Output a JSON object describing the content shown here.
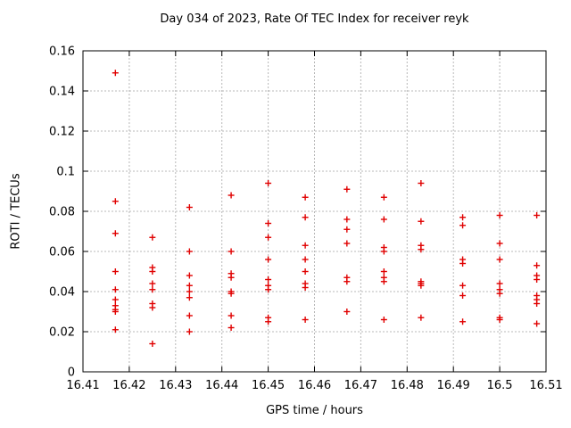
{
  "chart": {
    "title": "Day 034 of 2023, Rate Of TEC Index for receiver reyk",
    "xlabel": "GPS time / hours",
    "ylabel": "ROTI / TECUs"
  },
  "chart_data": {
    "type": "scatter",
    "title": "Day 034 of 2023, Rate Of TEC Index for receiver reyk",
    "xlabel": "GPS time / hours",
    "ylabel": "ROTI / TECUs",
    "xlim": [
      16.41,
      16.51
    ],
    "ylim": [
      0,
      0.16
    ],
    "x_tick_values": [
      16.41,
      16.42,
      16.43,
      16.44,
      16.45,
      16.46,
      16.47,
      16.48,
      16.49,
      16.5,
      16.51
    ],
    "x_tick_labels": [
      "16.41",
      "16.42",
      "16.43",
      "16.44",
      "16.45",
      "16.46",
      "16.47",
      "16.48",
      "16.49",
      "16.5",
      "16.51"
    ],
    "y_tick_values": [
      0,
      0.02,
      0.04,
      0.06,
      0.08,
      0.1,
      0.12,
      0.14,
      0.16
    ],
    "y_tick_labels": [
      "0",
      "0.02",
      "0.04",
      "0.06",
      "0.08",
      "0.1",
      "0.12",
      "0.14",
      "0.16"
    ],
    "grid": true,
    "legend": "none",
    "marker": "plus",
    "marker_color": "#e00000",
    "grid_color": "#b8b8b8",
    "border_color": "#000000",
    "series": [
      {
        "name": "ROTI",
        "points": [
          [
            16.417,
            0.149
          ],
          [
            16.417,
            0.085
          ],
          [
            16.417,
            0.069
          ],
          [
            16.417,
            0.05
          ],
          [
            16.417,
            0.041
          ],
          [
            16.417,
            0.036
          ],
          [
            16.417,
            0.033
          ],
          [
            16.417,
            0.031
          ],
          [
            16.417,
            0.03
          ],
          [
            16.417,
            0.021
          ],
          [
            16.425,
            0.067
          ],
          [
            16.425,
            0.052
          ],
          [
            16.425,
            0.05
          ],
          [
            16.425,
            0.044
          ],
          [
            16.425,
            0.041
          ],
          [
            16.425,
            0.034
          ],
          [
            16.425,
            0.032
          ],
          [
            16.425,
            0.014
          ],
          [
            16.433,
            0.082
          ],
          [
            16.433,
            0.06
          ],
          [
            16.433,
            0.048
          ],
          [
            16.433,
            0.043
          ],
          [
            16.433,
            0.04
          ],
          [
            16.433,
            0.037
          ],
          [
            16.433,
            0.028
          ],
          [
            16.433,
            0.02
          ],
          [
            16.442,
            0.088
          ],
          [
            16.442,
            0.06
          ],
          [
            16.442,
            0.049
          ],
          [
            16.442,
            0.047
          ],
          [
            16.442,
            0.04
          ],
          [
            16.442,
            0.039
          ],
          [
            16.442,
            0.028
          ],
          [
            16.442,
            0.022
          ],
          [
            16.45,
            0.094
          ],
          [
            16.45,
            0.074
          ],
          [
            16.45,
            0.067
          ],
          [
            16.45,
            0.056
          ],
          [
            16.45,
            0.046
          ],
          [
            16.45,
            0.043
          ],
          [
            16.45,
            0.041
          ],
          [
            16.45,
            0.027
          ],
          [
            16.45,
            0.025
          ],
          [
            16.458,
            0.087
          ],
          [
            16.458,
            0.077
          ],
          [
            16.458,
            0.063
          ],
          [
            16.458,
            0.056
          ],
          [
            16.458,
            0.05
          ],
          [
            16.458,
            0.044
          ],
          [
            16.458,
            0.042
          ],
          [
            16.458,
            0.026
          ],
          [
            16.467,
            0.091
          ],
          [
            16.467,
            0.076
          ],
          [
            16.467,
            0.071
          ],
          [
            16.467,
            0.064
          ],
          [
            16.467,
            0.047
          ],
          [
            16.467,
            0.045
          ],
          [
            16.467,
            0.03
          ],
          [
            16.475,
            0.087
          ],
          [
            16.475,
            0.076
          ],
          [
            16.475,
            0.062
          ],
          [
            16.475,
            0.06
          ],
          [
            16.475,
            0.05
          ],
          [
            16.475,
            0.047
          ],
          [
            16.475,
            0.045
          ],
          [
            16.475,
            0.026
          ],
          [
            16.483,
            0.094
          ],
          [
            16.483,
            0.075
          ],
          [
            16.483,
            0.063
          ],
          [
            16.483,
            0.061
          ],
          [
            16.483,
            0.045
          ],
          [
            16.483,
            0.044
          ],
          [
            16.483,
            0.043
          ],
          [
            16.483,
            0.027
          ],
          [
            16.492,
            0.077
          ],
          [
            16.492,
            0.073
          ],
          [
            16.492,
            0.056
          ],
          [
            16.492,
            0.054
          ],
          [
            16.492,
            0.043
          ],
          [
            16.492,
            0.038
          ],
          [
            16.492,
            0.025
          ],
          [
            16.5,
            0.078
          ],
          [
            16.5,
            0.064
          ],
          [
            16.5,
            0.056
          ],
          [
            16.5,
            0.044
          ],
          [
            16.5,
            0.041
          ],
          [
            16.5,
            0.039
          ],
          [
            16.5,
            0.027
          ],
          [
            16.5,
            0.026
          ],
          [
            16.508,
            0.078
          ],
          [
            16.508,
            0.053
          ],
          [
            16.508,
            0.048
          ],
          [
            16.508,
            0.046
          ],
          [
            16.508,
            0.038
          ],
          [
            16.508,
            0.036
          ],
          [
            16.508,
            0.034
          ],
          [
            16.508,
            0.024
          ]
        ]
      }
    ]
  }
}
